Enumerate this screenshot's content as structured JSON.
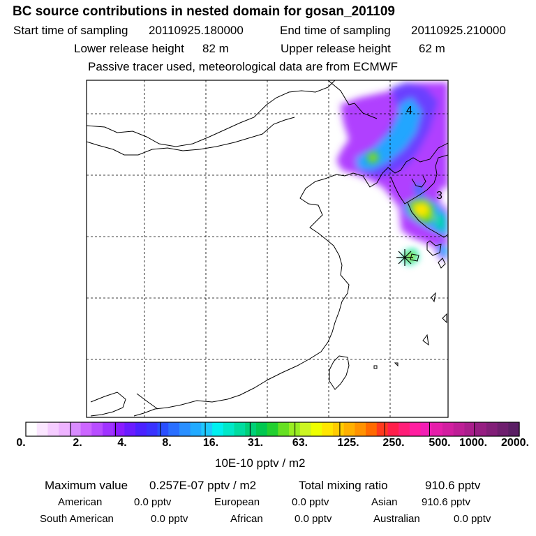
{
  "title": "BC  source contributions in nested domain for gosan_201109",
  "sampling": {
    "start_label": "Start time of sampling",
    "start_value": "20110925.180000",
    "end_label": "End time of sampling",
    "end_value": "20110925.210000"
  },
  "release": {
    "lower_label": "Lower release height",
    "lower_value": "82 m",
    "upper_label": "Upper release height",
    "upper_value": "62 m"
  },
  "note": "Passive tracer used, meteorological data are from ECMWF",
  "map": {
    "contour_labels": [
      "4",
      "3"
    ],
    "colors": {
      "coast": "#000000",
      "grid": "#000000",
      "receptor": "#000000"
    }
  },
  "colorbar": {
    "ticks": [
      "0.",
      "2.",
      "4.",
      "8.",
      "16.",
      "31.",
      "63.",
      "125.",
      "250.",
      "500.",
      "1000.",
      "2000."
    ],
    "colors": [
      "#ffffff",
      "#fbe6ff",
      "#f5ccff",
      "#eeb3ff",
      "#d98cff",
      "#cc66ff",
      "#b84dff",
      "#a033ff",
      "#8a1cff",
      "#6a1cff",
      "#4b22ff",
      "#3a33ff",
      "#2a4fff",
      "#2a6fff",
      "#2a8fff",
      "#22aaff",
      "#1ec8ff",
      "#00f0f0",
      "#00e8c8",
      "#00dca0",
      "#00d078",
      "#00c850",
      "#22d030",
      "#66e022",
      "#99ee22",
      "#ccf522",
      "#eeff00",
      "#ffe600",
      "#ffcc00",
      "#ffb000",
      "#ff9200",
      "#ff6a00",
      "#ff3a1e",
      "#ff1e4a",
      "#ff1e78",
      "#ff1ea0",
      "#f21eb4",
      "#e61eaa",
      "#d21ea0",
      "#be1e96",
      "#aa1e8c",
      "#961e82",
      "#821e78",
      "#6e1e6e",
      "#5a1e64"
    ],
    "units": "10E-10 pptv / m2"
  },
  "stats": {
    "max_label": "Maximum value",
    "max_value": "0.257E-07 pptv / m2",
    "total_label": "Total mixing ratio",
    "total_value": "910.6 pptv",
    "regions": [
      {
        "name": "American",
        "value": "0.0 pptv"
      },
      {
        "name": "European",
        "value": "0.0 pptv"
      },
      {
        "name": "Asian",
        "value": "910.6 pptv"
      },
      {
        "name": "South American",
        "value": "0.0 pptv"
      },
      {
        "name": "African",
        "value": "0.0 pptv"
      },
      {
        "name": "Australian",
        "value": "0.0 pptv"
      }
    ]
  }
}
